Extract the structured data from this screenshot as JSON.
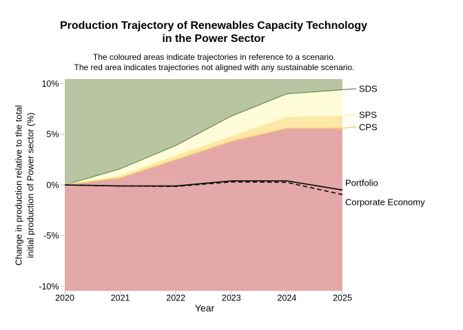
{
  "figure": {
    "title_line1": "Production Trajectory of Renewables Capacity Technology",
    "title_line2": "in the Power Sector",
    "subtitle_line1": "The coloured areas indicate trajectories in reference to a scenario.",
    "subtitle_line2": "The red area indicates trajectories not aligned with any sustainable scenario.",
    "y_axis_title_line1": "Change in production relative to the total",
    "y_axis_title_line2": "initial production of Power sector (%)",
    "x_axis_title": "Year"
  },
  "series_labels": {
    "sds": "SDS",
    "sps": "SPS",
    "cps": "CPS",
    "portfolio": "Portfolio",
    "corporate_economy": "Corporate Economy"
  },
  "chart_data": {
    "type": "area",
    "title": "Production Trajectory of Renewables Capacity Technology in the Power Sector",
    "xlabel": "Year",
    "ylabel": "Change in production relative to the total initial production of Power sector (%)",
    "x": [
      2020,
      2021,
      2022,
      2023,
      2024,
      2025
    ],
    "x_tick_labels": [
      "2020",
      "2021",
      "2022",
      "2023",
      "2024",
      "2025"
    ],
    "y_ticks": [
      {
        "value": 10,
        "label": "10%"
      },
      {
        "value": 5,
        "label": "5%"
      },
      {
        "value": 0,
        "label": "0%"
      },
      {
        "value": -5,
        "label": "-5%"
      },
      {
        "value": -10,
        "label": "-10%"
      }
    ],
    "ylim": [
      -10.45,
      10.45
    ],
    "boundaries": [
      {
        "name": "SDS",
        "values": [
          0,
          1.6,
          3.9,
          6.8,
          9.0,
          9.4
        ],
        "line_color": "#75975a"
      },
      {
        "name": "SPS",
        "values": [
          0,
          0.9,
          2.9,
          4.8,
          6.7,
          6.8
        ],
        "line_color": "#faf3a8"
      },
      {
        "name": "CPS",
        "values": [
          0,
          0.7,
          2.5,
          4.3,
          5.6,
          5.6
        ],
        "line_color": "#f5cd71"
      }
    ],
    "regions": [
      {
        "name": "sds-region",
        "fill": "#b9c5a2",
        "between": [
          "top",
          "SDS"
        ]
      },
      {
        "name": "sps-region",
        "fill": "#fefcd9",
        "between": [
          "SDS",
          "SPS"
        ]
      },
      {
        "name": "cps-region",
        "fill": "#fce6a8",
        "between": [
          "SPS",
          "CPS"
        ]
      },
      {
        "name": "not-aligned-region",
        "fill": "#e5a8a8",
        "between": [
          "CPS",
          "bottom"
        ]
      }
    ],
    "lines": [
      {
        "name": "Portfolio",
        "style": "solid",
        "color": "#111111",
        "values": [
          0,
          -0.1,
          -0.1,
          0.4,
          0.4,
          -0.5
        ]
      },
      {
        "name": "Corporate Economy",
        "style": "dashed",
        "color": "#111111",
        "values": [
          0,
          -0.1,
          -0.15,
          0.3,
          0.25,
          -0.95
        ]
      }
    ],
    "tick_color": "#b9b9b9",
    "background": "#ffffff",
    "grid": false,
    "legend_position": "right-labels"
  }
}
